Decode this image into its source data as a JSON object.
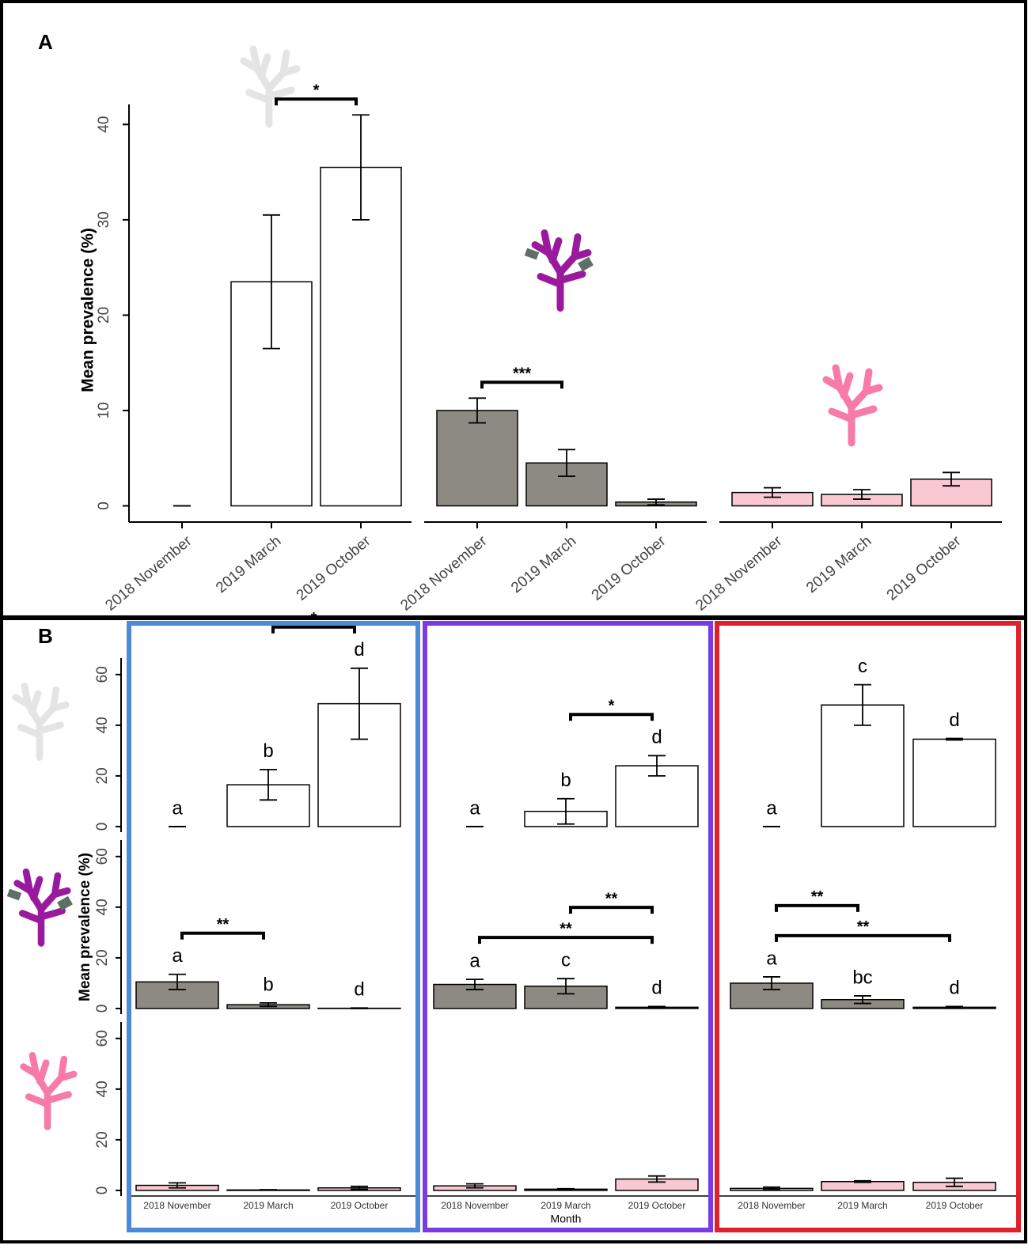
{
  "chart_data": [
    {
      "type": "bar",
      "panel": "A",
      "ylabel": "Mean prevalence (%)",
      "categories": [
        "2018 November",
        "2019 March",
        "2019 October"
      ],
      "ylim": [
        -1.7,
        42.1
      ],
      "yticks": [
        0,
        10,
        20,
        30,
        40
      ],
      "series": [
        {
          "color": "#ffffff",
          "values": [
            0,
            23.5,
            35.5
          ],
          "errors": [
            0,
            7,
            5.5
          ]
        },
        {
          "color": "#8c8a82",
          "values": [
            10,
            4.5,
            0.4
          ],
          "errors": [
            1.3,
            1.4,
            0.3
          ]
        },
        {
          "color": "#f9c8d2",
          "values": [
            1.4,
            1.2,
            2.8
          ],
          "errors": [
            0.5,
            0.5,
            0.7
          ]
        }
      ],
      "brackets": [
        {
          "series": 0,
          "from": 1,
          "to": 2,
          "text": "*"
        },
        {
          "series": 1,
          "from": 0,
          "to": 1,
          "text": "***"
        }
      ]
    },
    {
      "type": "bar",
      "color": "#ffffff",
      "values": [
        0,
        16.5,
        48.5
      ],
      "errors": [
        0,
        6,
        14
      ],
      "ylim": [
        -2.2,
        66.5
      ],
      "yticks": [
        0,
        20,
        40,
        60
      ],
      "letters": [
        "a",
        "b",
        "d"
      ],
      "brackets": [
        {
          "from": 1,
          "to": 2,
          "text": "*"
        }
      ]
    },
    {
      "type": "bar",
      "color": "#ffffff",
      "values": [
        0,
        6,
        24
      ],
      "errors": [
        0,
        5,
        4
      ],
      "ylim": [
        -2.2,
        66.5
      ],
      "letters": [
        "a",
        "b",
        "d"
      ],
      "brackets": [
        {
          "from": 1,
          "to": 2,
          "text": "*"
        }
      ]
    },
    {
      "type": "bar",
      "color": "#ffffff",
      "values": [
        0,
        48,
        34.5
      ],
      "errors": [
        0,
        8,
        0.3
      ],
      "ylim": [
        -2.2,
        66.5
      ],
      "letters": [
        "a",
        "c",
        "d"
      ]
    },
    {
      "type": "bar",
      "color": "#8c8a82",
      "values": [
        10.5,
        1.5,
        0.1
      ],
      "errors": [
        3,
        0.7,
        0.1
      ],
      "ylim": [
        -2.2,
        66.5
      ],
      "yticks": [
        0,
        20,
        40,
        60
      ],
      "letters": [
        "a",
        "b",
        "d"
      ],
      "brackets": [
        {
          "from": 0,
          "to": 1,
          "text": "**"
        }
      ]
    },
    {
      "type": "bar",
      "color": "#8c8a82",
      "values": [
        9.5,
        8.8,
        0.5
      ],
      "errors": [
        2,
        3,
        0.3
      ],
      "ylim": [
        -2.2,
        66.5
      ],
      "letters": [
        "a",
        "c",
        "d"
      ],
      "brackets": [
        {
          "from": 0,
          "to": 2,
          "text": "**"
        },
        {
          "from": 1,
          "to": 2,
          "text": "**"
        }
      ]
    },
    {
      "type": "bar",
      "color": "#8c8a82",
      "values": [
        10,
        3.5,
        0.5
      ],
      "errors": [
        2.5,
        1.5,
        0.3
      ],
      "ylim": [
        -2.2,
        66.5
      ],
      "letters": [
        "a",
        "bc",
        "d"
      ],
      "brackets": [
        {
          "from": 0,
          "to": 2,
          "text": "**"
        },
        {
          "from": 0,
          "to": 1,
          "text": "**"
        }
      ]
    },
    {
      "type": "bar",
      "color": "#f9c8d2",
      "values": [
        2,
        0.2,
        1
      ],
      "errors": [
        1,
        0.1,
        0.6
      ],
      "ylim": [
        -2.2,
        66.5
      ],
      "yticks": [
        0,
        20,
        40,
        60
      ],
      "categories": [
        "2018 November",
        "2019 March",
        "2019 October"
      ]
    },
    {
      "type": "bar",
      "color": "#f9c8d2",
      "values": [
        1.8,
        0.5,
        4.5
      ],
      "errors": [
        0.8,
        0.2,
        1.2
      ],
      "ylim": [
        -2.2,
        66.5
      ],
      "categories": [
        "2018 November",
        "2019 March",
        "2019 October"
      ]
    },
    {
      "type": "bar",
      "color": "#f9c8d2",
      "values": [
        0.8,
        3.5,
        3.2
      ],
      "errors": [
        0.5,
        0.3,
        1.6
      ],
      "ylim": [
        -2.2,
        66.5
      ],
      "categories": [
        "2018 November",
        "2019 March",
        "2019 October"
      ]
    }
  ],
  "panel_b": {
    "label": "B",
    "ylabel": "Mean prevalence (%)",
    "xlabel": "Month",
    "frame_colors": [
      "#4a8ad8",
      "#7a3be6",
      "#e0202a"
    ]
  }
}
